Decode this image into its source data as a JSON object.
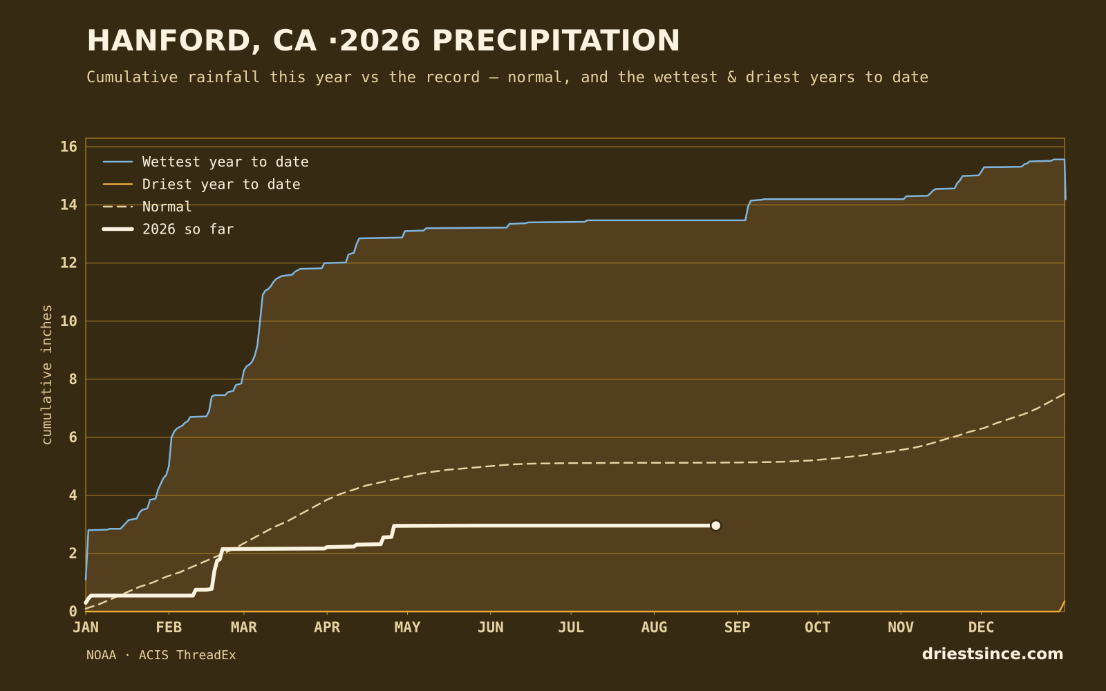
{
  "header": {
    "title": "HANFORD, CA ·2026 PRECIPITATION",
    "subtitle": "Cumulative rainfall this year vs the record — normal, and the wettest & driest years to date"
  },
  "footer": {
    "source": "NOAA · ACIS ThreadEx",
    "site": "driestsince.com"
  },
  "colors": {
    "background": "#372a12",
    "plot_fill": "#533e1d",
    "grid": "#c8952c",
    "wettest": "#7eb6e0",
    "driest": "#e9a93b",
    "normal": "#e6d2a2",
    "current": "#fbf3df",
    "text": "#e6d2a2"
  },
  "chart_data": {
    "type": "line",
    "title": "HANFORD, CA ·2026 PRECIPITATION",
    "subtitle": "Cumulative rainfall this year vs the record — normal, and the wettest & driest years to date",
    "xlabel": "",
    "ylabel": "cumulative inches",
    "x_unit": "day of year",
    "xlim": [
      1,
      366
    ],
    "ylim": [
      0,
      16.3
    ],
    "month_ticks": [
      {
        "label": "JAN",
        "day": 1
      },
      {
        "label": "FEB",
        "day": 32
      },
      {
        "label": "MAR",
        "day": 60
      },
      {
        "label": "APR",
        "day": 91
      },
      {
        "label": "MAY",
        "day": 121
      },
      {
        "label": "JUN",
        "day": 152
      },
      {
        "label": "JUL",
        "day": 182
      },
      {
        "label": "AUG",
        "day": 213
      },
      {
        "label": "SEP",
        "day": 244
      },
      {
        "label": "OCT",
        "day": 274
      },
      {
        "label": "NOV",
        "day": 305
      },
      {
        "label": "DEC",
        "day": 335
      }
    ],
    "y_ticks": [
      0,
      2,
      4,
      6,
      8,
      10,
      12,
      14,
      16
    ],
    "grid": true,
    "legend_position": "top-left",
    "series": [
      {
        "name": "Wettest year to date",
        "style": "solid",
        "points": [
          [
            1,
            1.1
          ],
          [
            2,
            2.8
          ],
          [
            9,
            2.82
          ],
          [
            10,
            2.85
          ],
          [
            14,
            2.85
          ],
          [
            15,
            2.95
          ],
          [
            16,
            3.05
          ],
          [
            17,
            3.15
          ],
          [
            20,
            3.2
          ],
          [
            21,
            3.4
          ],
          [
            22,
            3.5
          ],
          [
            24,
            3.55
          ],
          [
            25,
            3.85
          ],
          [
            27,
            3.88
          ],
          [
            28,
            4.2
          ],
          [
            30,
            4.6
          ],
          [
            31,
            4.7
          ],
          [
            32,
            5.0
          ],
          [
            33,
            6.0
          ],
          [
            34,
            6.2
          ],
          [
            35,
            6.3
          ],
          [
            37,
            6.4
          ],
          [
            38,
            6.5
          ],
          [
            39,
            6.55
          ],
          [
            40,
            6.7
          ],
          [
            46,
            6.72
          ],
          [
            47,
            6.9
          ],
          [
            48,
            7.4
          ],
          [
            49,
            7.45
          ],
          [
            53,
            7.45
          ],
          [
            54,
            7.55
          ],
          [
            56,
            7.6
          ],
          [
            57,
            7.8
          ],
          [
            59,
            7.85
          ],
          [
            60,
            8.3
          ],
          [
            61,
            8.45
          ],
          [
            62,
            8.5
          ],
          [
            63,
            8.6
          ],
          [
            64,
            8.8
          ],
          [
            65,
            9.15
          ],
          [
            66,
            10.0
          ],
          [
            67,
            10.9
          ],
          [
            68,
            11.05
          ],
          [
            69,
            11.1
          ],
          [
            70,
            11.2
          ],
          [
            71,
            11.35
          ],
          [
            72,
            11.45
          ],
          [
            73,
            11.5
          ],
          [
            74,
            11.55
          ],
          [
            78,
            11.6
          ],
          [
            79,
            11.7
          ],
          [
            80,
            11.75
          ],
          [
            81,
            11.8
          ],
          [
            89,
            11.82
          ],
          [
            90,
            12.0
          ],
          [
            98,
            12.02
          ],
          [
            99,
            12.3
          ],
          [
            101,
            12.35
          ],
          [
            102,
            12.65
          ],
          [
            103,
            12.85
          ],
          [
            119,
            12.88
          ],
          [
            120,
            13.1
          ],
          [
            127,
            13.12
          ],
          [
            128,
            13.2
          ],
          [
            158,
            13.22
          ],
          [
            159,
            13.35
          ],
          [
            165,
            13.37
          ],
          [
            166,
            13.4
          ],
          [
            187,
            13.42
          ],
          [
            188,
            13.47
          ],
          [
            247,
            13.47
          ],
          [
            248,
            13.95
          ],
          [
            249,
            14.15
          ],
          [
            253,
            14.18
          ],
          [
            254,
            14.2
          ],
          [
            306,
            14.2
          ],
          [
            307,
            14.3
          ],
          [
            315,
            14.32
          ],
          [
            316,
            14.4
          ],
          [
            317,
            14.5
          ],
          [
            318,
            14.55
          ],
          [
            325,
            14.57
          ],
          [
            326,
            14.75
          ],
          [
            327,
            14.85
          ],
          [
            328,
            15.0
          ],
          [
            334,
            15.02
          ],
          [
            335,
            15.15
          ],
          [
            336,
            15.3
          ],
          [
            350,
            15.32
          ],
          [
            351,
            15.4
          ],
          [
            352,
            15.43
          ],
          [
            353,
            15.5
          ],
          [
            361,
            15.52
          ],
          [
            362,
            15.57
          ],
          [
            366,
            15.57
          ],
          [
            366.4,
            14.2
          ]
        ]
      },
      {
        "name": "Driest year to date",
        "style": "solid",
        "points": [
          [
            1,
            0.0
          ],
          [
            364,
            0.0
          ],
          [
            365,
            0.15
          ],
          [
            366,
            0.35
          ]
        ]
      },
      {
        "name": "Normal",
        "style": "dashed",
        "points": [
          [
            1,
            0.1
          ],
          [
            6,
            0.25
          ],
          [
            11,
            0.45
          ],
          [
            16,
            0.65
          ],
          [
            21,
            0.85
          ],
          [
            26,
            1.0
          ],
          [
            31,
            1.2
          ],
          [
            36,
            1.35
          ],
          [
            41,
            1.55
          ],
          [
            46,
            1.75
          ],
          [
            51,
            1.95
          ],
          [
            56,
            2.15
          ],
          [
            61,
            2.4
          ],
          [
            66,
            2.65
          ],
          [
            71,
            2.9
          ],
          [
            76,
            3.1
          ],
          [
            81,
            3.35
          ],
          [
            86,
            3.6
          ],
          [
            91,
            3.85
          ],
          [
            96,
            4.05
          ],
          [
            101,
            4.2
          ],
          [
            106,
            4.35
          ],
          [
            111,
            4.45
          ],
          [
            116,
            4.55
          ],
          [
            121,
            4.65
          ],
          [
            126,
            4.75
          ],
          [
            131,
            4.82
          ],
          [
            136,
            4.88
          ],
          [
            141,
            4.92
          ],
          [
            146,
            4.96
          ],
          [
            151,
            5.0
          ],
          [
            156,
            5.04
          ],
          [
            161,
            5.07
          ],
          [
            166,
            5.09
          ],
          [
            171,
            5.1
          ],
          [
            181,
            5.11
          ],
          [
            201,
            5.12
          ],
          [
            221,
            5.12
          ],
          [
            241,
            5.13
          ],
          [
            251,
            5.14
          ],
          [
            261,
            5.16
          ],
          [
            271,
            5.2
          ],
          [
            281,
            5.28
          ],
          [
            291,
            5.38
          ],
          [
            301,
            5.5
          ],
          [
            306,
            5.58
          ],
          [
            311,
            5.66
          ],
          [
            316,
            5.78
          ],
          [
            321,
            5.92
          ],
          [
            326,
            6.05
          ],
          [
            331,
            6.2
          ],
          [
            336,
            6.32
          ],
          [
            341,
            6.5
          ],
          [
            346,
            6.65
          ],
          [
            351,
            6.8
          ],
          [
            356,
            7.0
          ],
          [
            361,
            7.25
          ],
          [
            366,
            7.5
          ]
        ]
      },
      {
        "name": "2026 so far",
        "style": "thick",
        "points": [
          [
            1,
            0.3
          ],
          [
            2,
            0.45
          ],
          [
            3,
            0.55
          ],
          [
            10,
            0.55
          ],
          [
            41,
            0.55
          ],
          [
            42,
            0.75
          ],
          [
            46,
            0.75
          ],
          [
            48,
            0.78
          ],
          [
            49,
            1.4
          ],
          [
            50,
            1.75
          ],
          [
            51,
            1.8
          ],
          [
            52,
            2.15
          ],
          [
            90,
            2.17
          ],
          [
            91,
            2.22
          ],
          [
            101,
            2.24
          ],
          [
            102,
            2.3
          ],
          [
            111,
            2.32
          ],
          [
            112,
            2.55
          ],
          [
            115,
            2.57
          ],
          [
            116,
            2.95
          ],
          [
            148,
            2.96
          ],
          [
            236,
            2.96
          ]
        ]
      }
    ],
    "current_marker": {
      "day": 236,
      "value": 2.96
    }
  }
}
